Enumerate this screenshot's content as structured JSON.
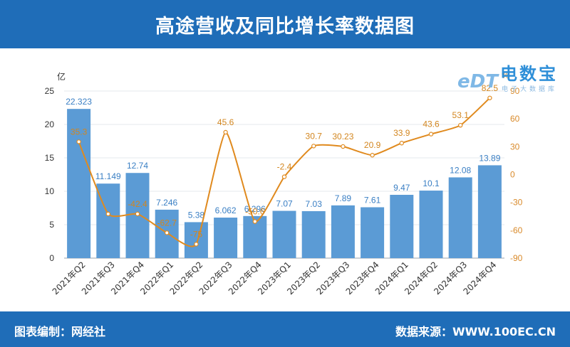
{
  "header": {
    "title": "高途营收及同比增长率数据图"
  },
  "footer": {
    "left_text": "图表编制：网经社",
    "right_text": "数据来源：WWW.100EC.CN"
  },
  "logo": {
    "brand": "电数宝",
    "sub": "电子大数据库",
    "mark": "eDT"
  },
  "colors": {
    "header_bg": "#1f6db8",
    "bar": "#5b9bd5",
    "line": "#e08a1e",
    "axis_right": "#d98a2a"
  },
  "chart_data": {
    "type": "bar",
    "categories": [
      "2021年Q2",
      "2021年Q3",
      "2021年Q4",
      "2022年Q1",
      "2022年Q2",
      "2022年Q3",
      "2022年Q4",
      "2023年Q1",
      "2023年Q2",
      "2023年Q3",
      "2023年Q4",
      "2024年Q1",
      "2024年Q2",
      "2024年Q3",
      "2024年Q4"
    ],
    "series": [
      {
        "name": "营收",
        "type": "bar",
        "axis": "left",
        "values": [
          22.323,
          11.149,
          12.74,
          7.246,
          5.38,
          6.062,
          6.296,
          7.07,
          7.03,
          7.89,
          7.61,
          9.47,
          10.1,
          12.08,
          13.89
        ],
        "labels": [
          "22.323",
          "11.149",
          "12.74",
          "7.246",
          "5.38",
          "6.062",
          "6.296",
          "7.07",
          "7.03",
          "7.89",
          "7.61",
          "9.47",
          "10.1",
          "12.08",
          "13.89"
        ]
      },
      {
        "name": "同比增长率",
        "type": "line",
        "axis": "right",
        "values": [
          35.3,
          -42.4,
          -42.4,
          -62.7,
          -75,
          45.6,
          -50.6,
          -2.4,
          30.7,
          30.23,
          20.9,
          33.9,
          43.6,
          53.1,
          82.5
        ],
        "labels": [
          "35.3",
          "",
          "-42.4",
          "-62.7",
          "-75",
          "45.6",
          "-50.6",
          "-2.4",
          "30.7",
          "30.23",
          "20.9",
          "33.9",
          "43.6",
          "53.1",
          "82.5"
        ]
      }
    ],
    "left_axis": {
      "unit": "亿",
      "min": 0,
      "max": 25,
      "ticks": [
        0,
        5,
        10,
        15,
        20,
        25
      ]
    },
    "right_axis": {
      "unit": "%",
      "min": -90,
      "max": 90,
      "ticks": [
        -90,
        -60,
        -30,
        0,
        30,
        60,
        90
      ]
    }
  }
}
